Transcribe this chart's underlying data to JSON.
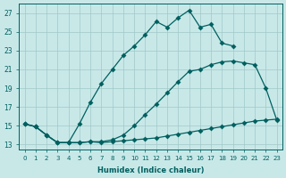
{
  "xlabel": "Humidex (Indice chaleur)",
  "xlim": [
    -0.5,
    23.5
  ],
  "ylim": [
    12.5,
    28.0
  ],
  "xticks": [
    0,
    1,
    2,
    3,
    4,
    5,
    6,
    7,
    8,
    9,
    10,
    11,
    12,
    13,
    14,
    15,
    16,
    17,
    18,
    19,
    20,
    21,
    22,
    23
  ],
  "yticks": [
    13,
    15,
    17,
    19,
    21,
    23,
    25,
    27
  ],
  "bg_color": "#c8e8e8",
  "grid_color": "#a0c8c8",
  "line_color": "#006060",
  "line1_x": [
    0,
    1,
    2,
    3,
    4,
    5,
    6,
    7,
    8,
    9,
    10,
    11,
    12,
    13,
    14,
    15,
    16,
    17,
    18,
    19,
    20,
    21,
    22,
    23
  ],
  "line1_y": [
    15.2,
    14.9,
    14.0,
    13.2,
    13.2,
    13.2,
    13.3,
    13.2,
    13.3,
    13.4,
    13.5,
    13.6,
    13.7,
    13.9,
    14.1,
    14.3,
    14.5,
    14.7,
    14.9,
    15.1,
    15.3,
    15.5,
    15.6,
    15.7
  ],
  "line2_x": [
    0,
    1,
    2,
    3,
    4,
    5,
    6,
    7,
    8,
    9,
    10,
    11,
    12,
    13,
    14,
    15,
    16,
    17,
    18,
    19,
    20,
    21,
    22,
    23
  ],
  "line2_y": [
    15.2,
    14.9,
    14.0,
    13.2,
    13.2,
    13.2,
    13.3,
    13.3,
    13.5,
    14.0,
    15.0,
    16.2,
    17.3,
    18.5,
    19.7,
    20.8,
    21.0,
    21.5,
    21.8,
    21.9,
    21.7,
    21.5,
    19.0,
    15.6
  ],
  "line3_x": [
    0,
    1,
    2,
    3,
    4,
    5,
    6,
    7,
    8,
    9,
    10,
    11,
    12,
    13,
    14,
    15,
    16,
    17,
    18,
    19,
    20,
    21,
    22,
    23
  ],
  "line3_y": [
    15.2,
    14.9,
    14.0,
    13.2,
    13.2,
    15.2,
    17.5,
    19.5,
    21.0,
    22.5,
    23.5,
    24.7,
    26.1,
    25.5,
    26.5,
    27.3,
    25.5,
    25.8,
    23.8,
    23.5,
    null,
    null,
    null,
    null
  ]
}
